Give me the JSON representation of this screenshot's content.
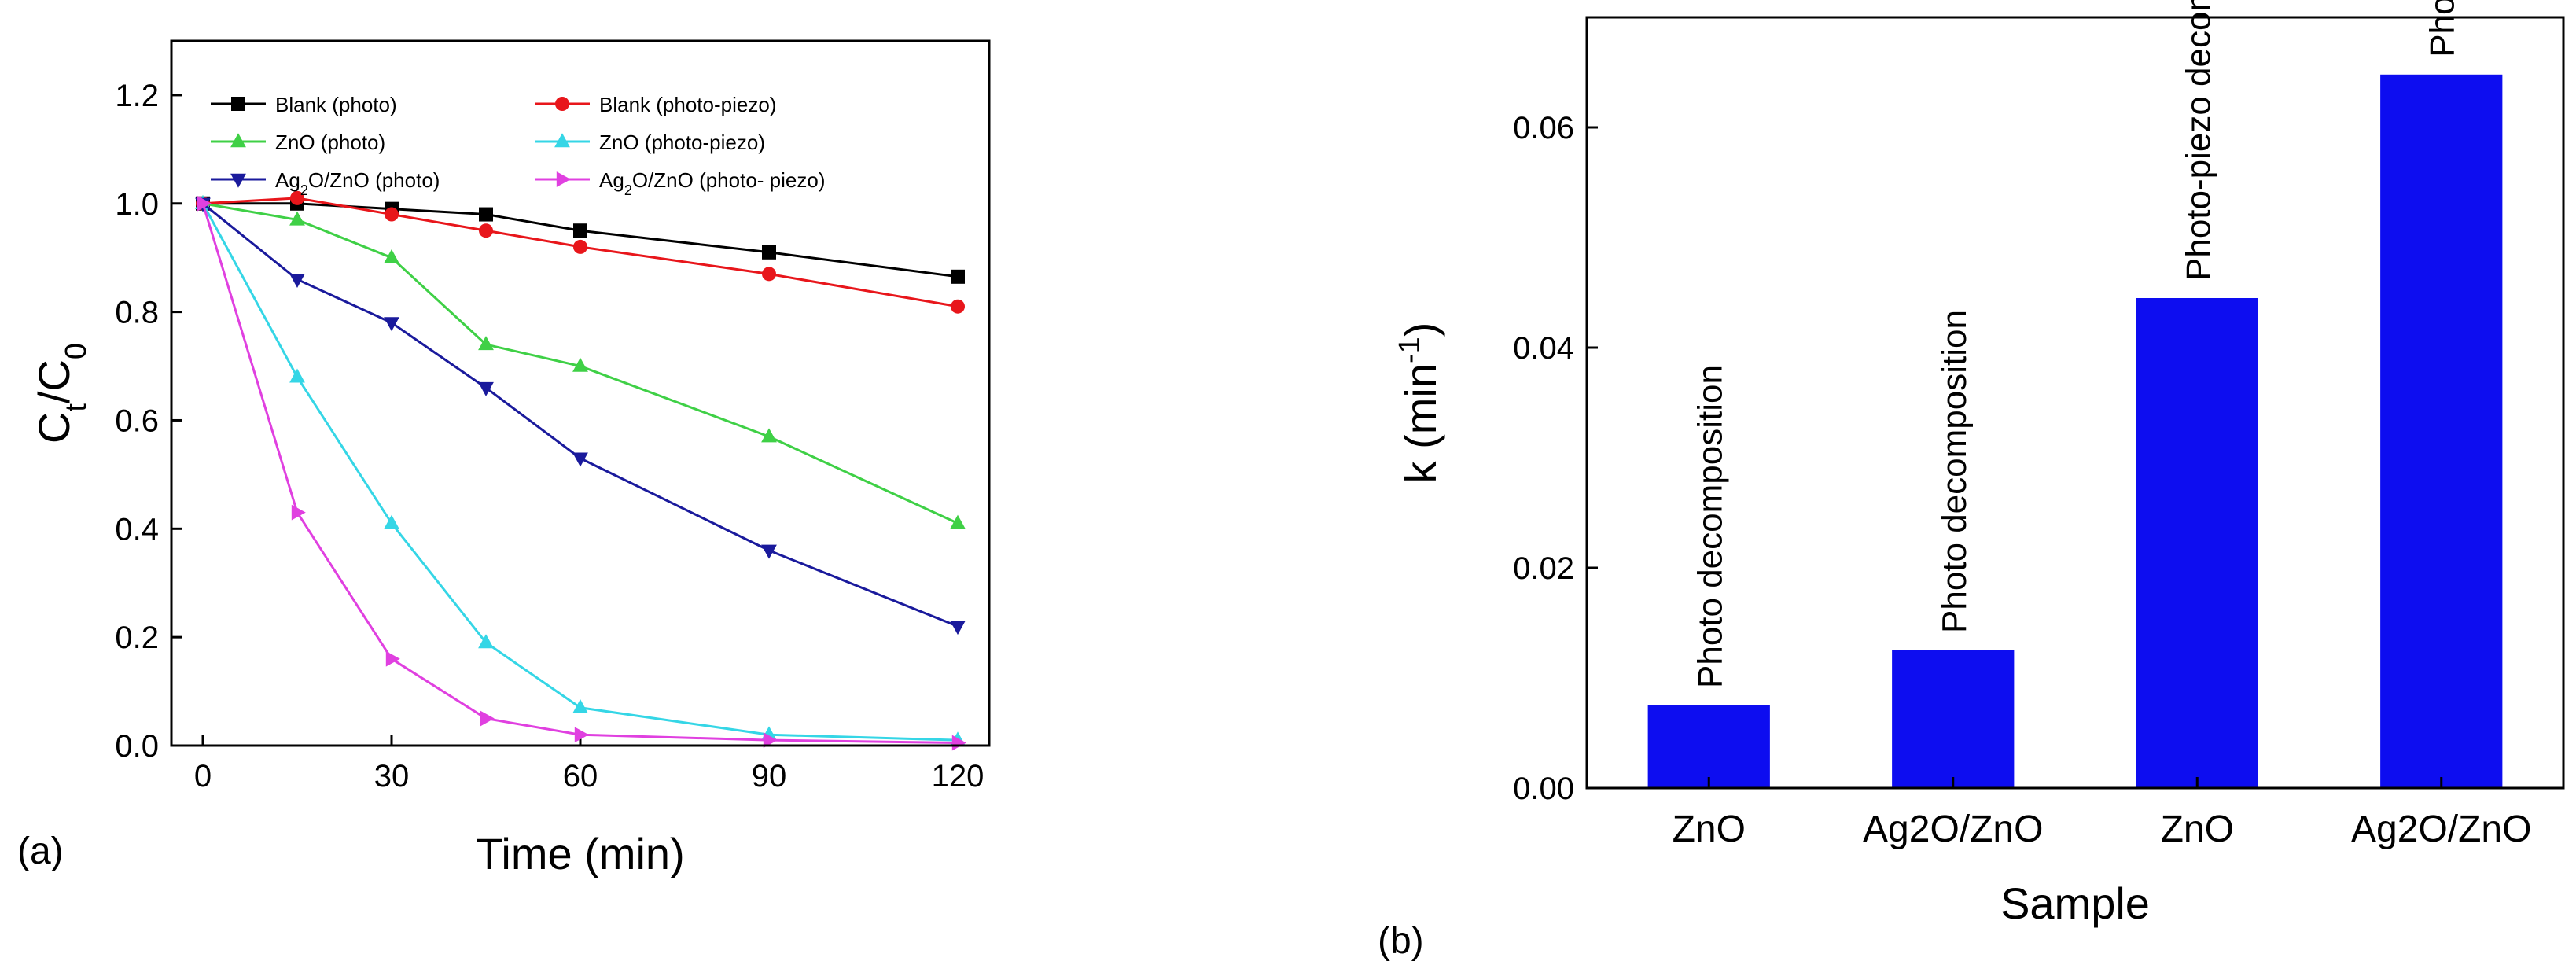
{
  "figure": {
    "panel_a_label": "(a)",
    "panel_b_label": "(b)"
  },
  "chart_data": [
    {
      "type": "line",
      "xlabel": "Time (min)",
      "ylabel_main": "C",
      "ylabel_sub1": "t",
      "ylabel_mid": "/C",
      "ylabel_sub2": "0",
      "xlim": [
        -5,
        125
      ],
      "ylim": [
        0,
        1.3
      ],
      "xticks": [
        0,
        30,
        60,
        90,
        120
      ],
      "xtick_labels": [
        "0",
        "30",
        "60",
        "90",
        "120"
      ],
      "yticks": [
        0,
        0.2,
        0.4,
        0.6,
        0.8,
        1.0,
        1.2
      ],
      "ytick_labels": [
        "0.0",
        "0.2",
        "0.4",
        "0.6",
        "0.8",
        "1.0",
        "1.2"
      ],
      "legend_position": "top",
      "series": [
        {
          "name": "Blank (photo)",
          "legend_main": "Blank (photo)",
          "legend_sub": "",
          "legend_rest": "",
          "color": "#000000",
          "marker": "square",
          "x": [
            0,
            15,
            30,
            45,
            60,
            90,
            120
          ],
          "y": [
            1.0,
            1.0,
            0.99,
            0.98,
            0.95,
            0.91,
            0.865
          ]
        },
        {
          "name": "Blank (photo-piezo)",
          "legend_main": "Blank (photo-piezo)",
          "legend_sub": "",
          "legend_rest": "",
          "color": "#e8161b",
          "marker": "circle",
          "x": [
            0,
            15,
            30,
            45,
            60,
            90,
            120
          ],
          "y": [
            1.0,
            1.01,
            0.98,
            0.95,
            0.92,
            0.87,
            0.81
          ]
        },
        {
          "name": "ZnO (photo)",
          "legend_main": "ZnO (photo)",
          "legend_sub": "",
          "legend_rest": "",
          "color": "#3fd046",
          "marker": "triangle-up",
          "x": [
            0,
            15,
            30,
            45,
            60,
            90,
            120
          ],
          "y": [
            1.0,
            0.97,
            0.9,
            0.74,
            0.7,
            0.57,
            0.41
          ]
        },
        {
          "name": "ZnO (photo-piezo)",
          "legend_main": "ZnO (photo-piezo)",
          "legend_sub": "",
          "legend_rest": "",
          "color": "#35d6e6",
          "marker": "triangle-up",
          "x": [
            0,
            15,
            30,
            45,
            60,
            90,
            120
          ],
          "y": [
            1.0,
            0.68,
            0.41,
            0.19,
            0.07,
            0.02,
            0.01
          ]
        },
        {
          "name": "Ag2O/ZnO (photo)",
          "legend_main": "Ag",
          "legend_sub": "2",
          "legend_rest": "O/ZnO (photo)",
          "color": "#1a1a9c",
          "marker": "triangle-down",
          "x": [
            0,
            15,
            30,
            45,
            60,
            90,
            120
          ],
          "y": [
            1.0,
            0.86,
            0.78,
            0.66,
            0.53,
            0.36,
            0.22
          ]
        },
        {
          "name": "Ag2O/ZnO (photo- piezo)",
          "legend_main": "Ag",
          "legend_sub": "2",
          "legend_rest": "O/ZnO (photo- piezo)",
          "color": "#e040e0",
          "marker": "triangle-right",
          "x": [
            0,
            15,
            30,
            45,
            60,
            90,
            120
          ],
          "y": [
            1.0,
            0.43,
            0.16,
            0.05,
            0.02,
            0.01,
            0.005
          ]
        }
      ]
    },
    {
      "type": "bar",
      "xlabel": "Sample",
      "ylabel_main": "k (min",
      "ylabel_sup": "-1",
      "ylabel_end": ")",
      "ylim": [
        0,
        0.07
      ],
      "yticks": [
        0,
        0.02,
        0.04,
        0.06
      ],
      "ytick_labels": [
        "0.00",
        "0.02",
        "0.04",
        "0.06"
      ],
      "bar_color": "#0d0df0",
      "categories": [
        "ZnO",
        "Ag2O/ZnO",
        "ZnO",
        "Ag2O/ZnO"
      ],
      "values": [
        0.0075,
        0.0125,
        0.0445,
        0.0648
      ],
      "bar_labels": [
        "Photo decomposition",
        "Photo decomposition",
        "Photo-piezo decomposition",
        "Photo-piezo decomposition"
      ]
    }
  ]
}
